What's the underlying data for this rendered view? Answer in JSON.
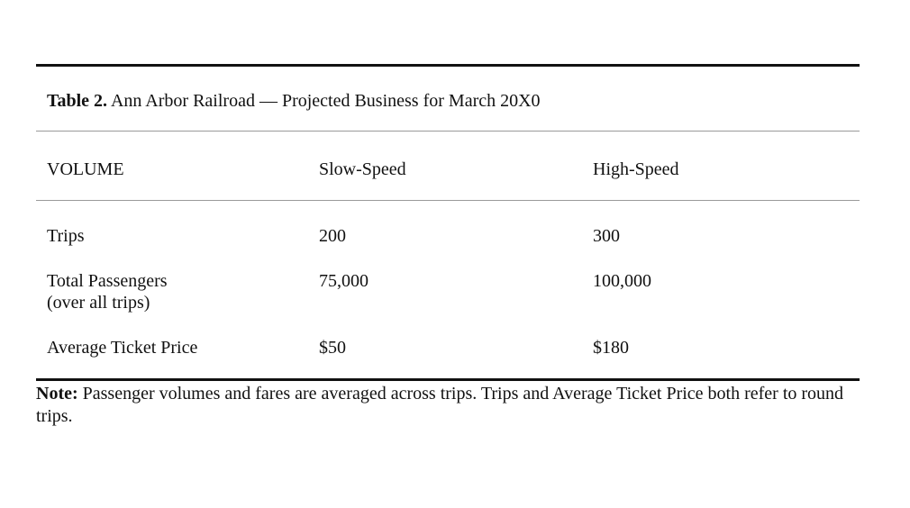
{
  "caption": {
    "label": "Table 2.",
    "title": "Ann Arbor Railroad — Projected Business for March 20X0"
  },
  "table": {
    "headers": [
      "VOLUME",
      "Slow-Speed",
      "High-Speed"
    ],
    "rows": [
      {
        "label": "Trips",
        "label_line2": "",
        "slow": "200",
        "high": "300"
      },
      {
        "label": "Total Passengers",
        "label_line2": "(over all trips)",
        "slow": "75,000",
        "high": "100,000"
      },
      {
        "label": "Average Ticket Price",
        "label_line2": "",
        "slow": "$50",
        "high": "$180"
      }
    ]
  },
  "note": {
    "label": "Note:",
    "text": "Passenger volumes and fares are averaged across trips. Trips and Average Ticket Price both refer to round trips."
  }
}
